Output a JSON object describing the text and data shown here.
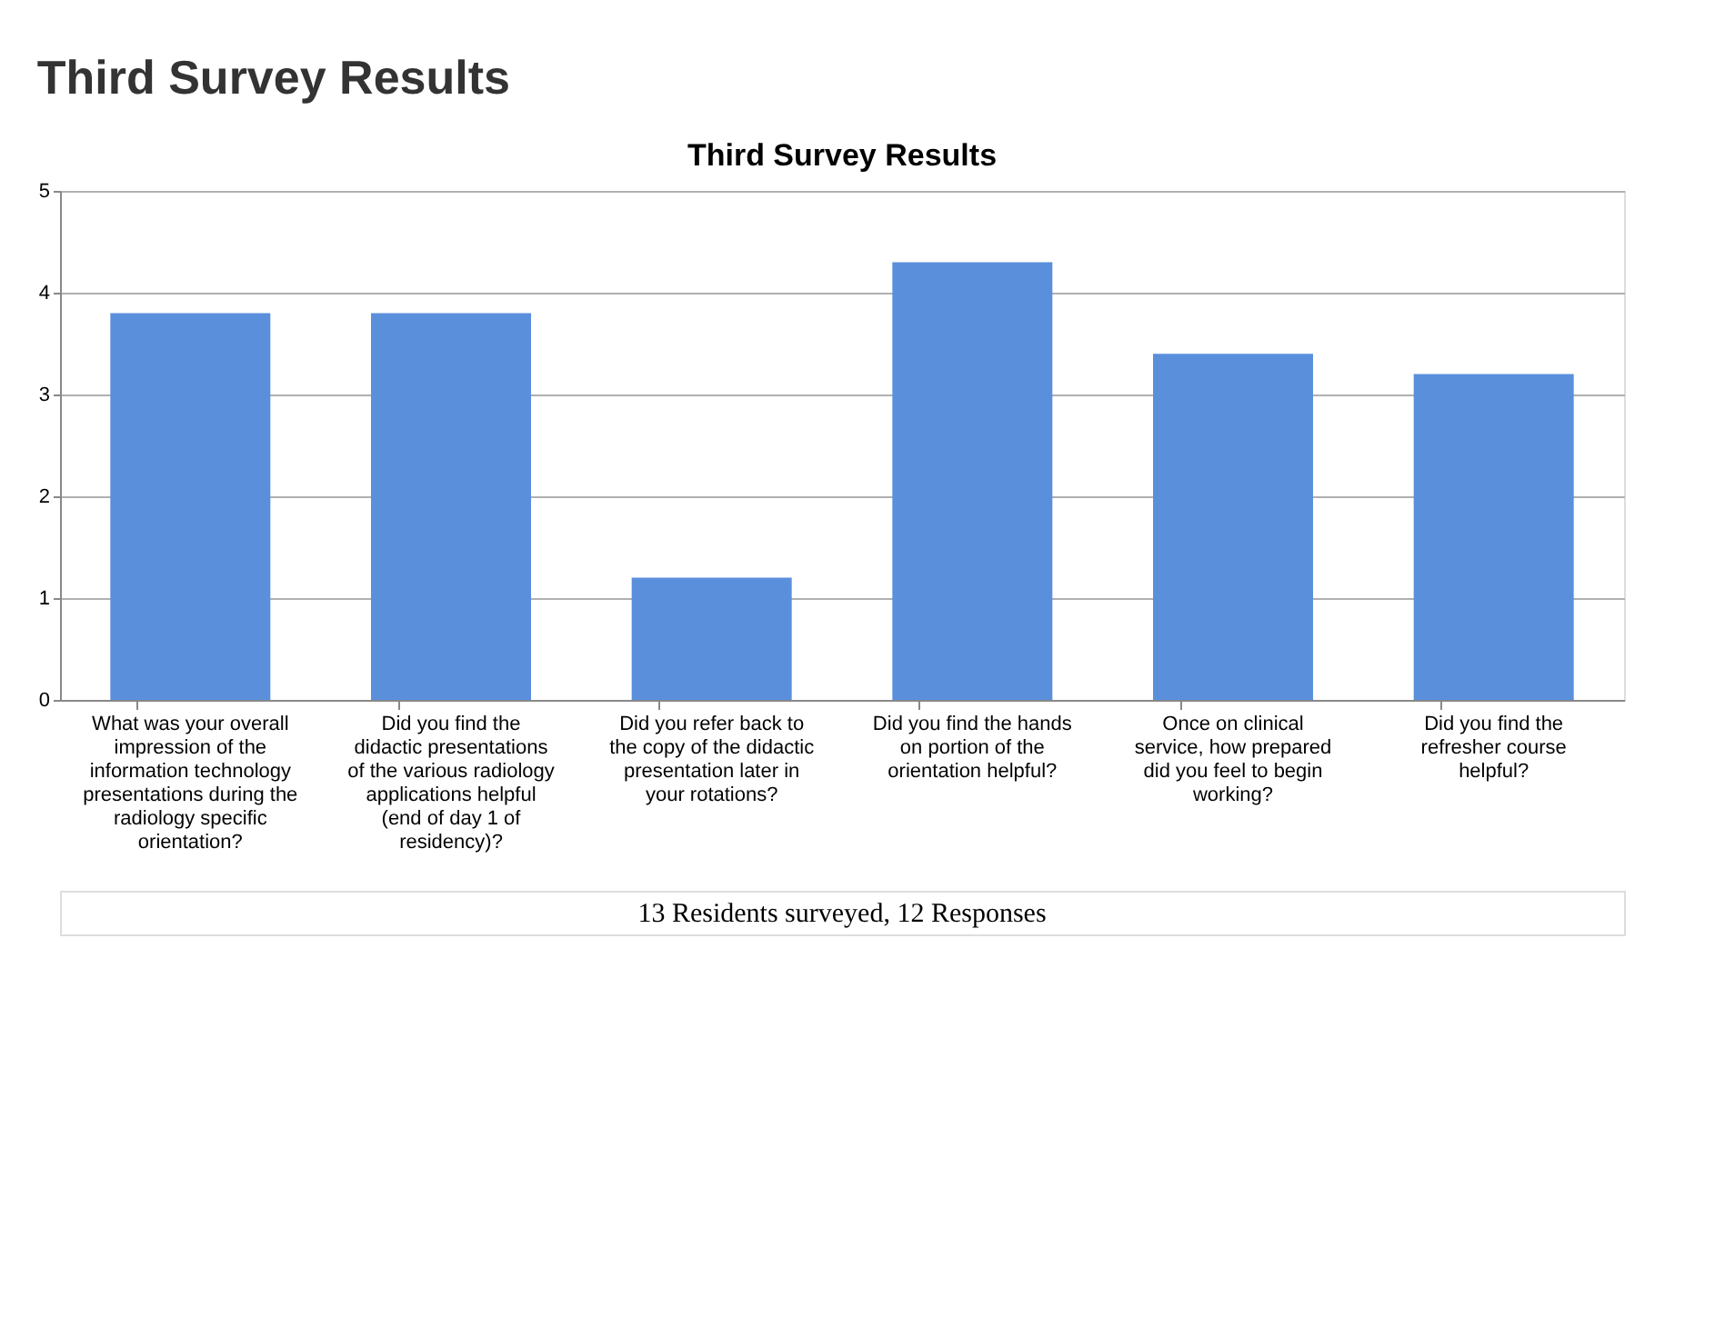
{
  "chart_data": {
    "type": "bar",
    "title": "Third Survey Results",
    "subtitle": "Third Survey Results",
    "categories": [
      "What was your overall impression of the information technology presentations during the radiology specific orientation?",
      "Did you find the didactic presentations of the various radiology applications helpful (end of day 1 of residency)?",
      "Did you refer back to the copy of the didactic presentation later in your rotations?",
      "Did you find the hands on portion of the orientation helpful?",
      "Once on clinical service, how prepared did you feel to begin working?",
      "Did you find the refresher course helpful?"
    ],
    "values": [
      3.8,
      3.8,
      1.2,
      4.3,
      3.4,
      3.2
    ],
    "color": "#5a8fdc",
    "ylim": [
      0,
      5
    ],
    "yticks": [
      0,
      1,
      2,
      3,
      4,
      5
    ],
    "grid": "y",
    "annotations": [
      "13 Residents surveyed, 12 Responses"
    ]
  }
}
